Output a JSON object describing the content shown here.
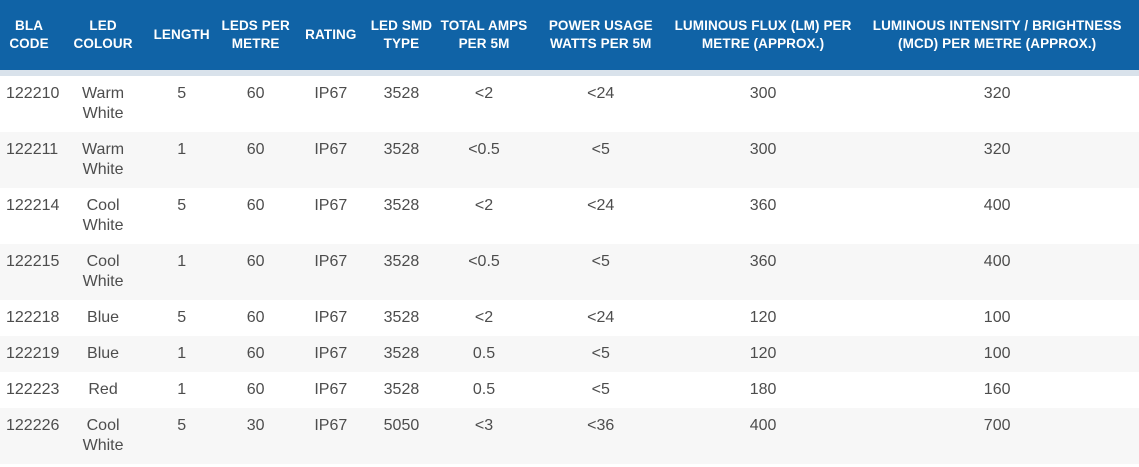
{
  "colors": {
    "header_bg": "#1063A6",
    "header_text": "#FFFFFF",
    "separator": "#D9E2EB",
    "stripe": "#F7F7F7",
    "body_text": "#4D4D4D"
  },
  "table": {
    "columns": [
      "BLA CODE",
      "LED COLOUR",
      "LENGTH",
      "LEDS PER METRE",
      "RATING",
      "LED SMD TYPE",
      "TOTAL AMPS PER 5M",
      "POWER USAGE WATTS PER 5M",
      "LUMINOUS FLUX (LM) PER METRE (APPROX.)",
      "LUMINOUS INTENSITY / BRIGHTNESS (MCD) PER METRE (APPROX.)"
    ],
    "rows": [
      [
        "122210",
        "Warm White",
        "5",
        "60",
        "IP67",
        "3528",
        "<2",
        "<24",
        "300",
        "320"
      ],
      [
        "122211",
        "Warm White",
        "1",
        "60",
        "IP67",
        "3528",
        "<0.5",
        "<5",
        "300",
        "320"
      ],
      [
        "122214",
        "Cool White",
        "5",
        "60",
        "IP67",
        "3528",
        "<2",
        "<24",
        "360",
        "400"
      ],
      [
        "122215",
        "Cool White",
        "1",
        "60",
        "IP67",
        "3528",
        "<0.5",
        "<5",
        "360",
        "400"
      ],
      [
        "122218",
        "Blue",
        "5",
        "60",
        "IP67",
        "3528",
        "<2",
        "<24",
        "120",
        "100"
      ],
      [
        "122219",
        "Blue",
        "1",
        "60",
        "IP67",
        "3528",
        "0.5",
        "<5",
        "120",
        "100"
      ],
      [
        "122223",
        "Red",
        "1",
        "60",
        "IP67",
        "3528",
        "0.5",
        "<5",
        "180",
        "160"
      ],
      [
        "122226",
        "Cool White",
        "5",
        "30",
        "IP67",
        "5050",
        "<3",
        "<36",
        "400",
        "700"
      ]
    ]
  }
}
